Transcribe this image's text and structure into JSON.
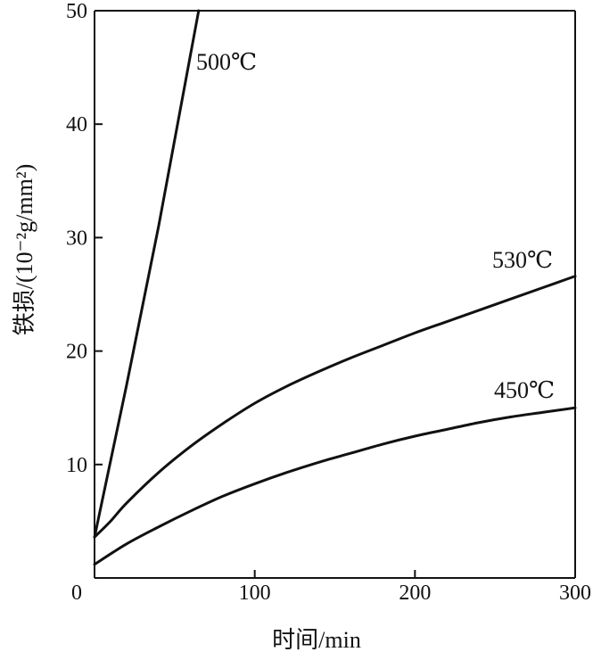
{
  "chart_data": {
    "type": "line",
    "title": "",
    "xlabel": "时间/min",
    "ylabel": "铁损/(10⁻²g/mm²)",
    "xlim": [
      0,
      300
    ],
    "ylim": [
      0,
      50
    ],
    "xticks": [
      0,
      100,
      200,
      300
    ],
    "yticks": [
      10,
      20,
      30,
      40,
      50
    ],
    "grid": false,
    "series": [
      {
        "name": "500℃",
        "x": [
          0,
          20,
          40,
          65
        ],
        "y": [
          3.6,
          17,
          31,
          50
        ]
      },
      {
        "name": "530℃",
        "x": [
          0,
          10,
          20,
          40,
          60,
          80,
          100,
          120,
          140,
          160,
          180,
          200,
          220,
          240,
          260,
          280,
          300
        ],
        "y": [
          3.6,
          5.0,
          6.6,
          9.3,
          11.6,
          13.6,
          15.4,
          16.9,
          18.2,
          19.4,
          20.5,
          21.6,
          22.6,
          23.6,
          24.6,
          25.6,
          26.6
        ]
      },
      {
        "name": "450℃",
        "x": [
          0,
          20,
          40,
          60,
          80,
          100,
          120,
          140,
          160,
          180,
          200,
          220,
          240,
          260,
          280,
          300
        ],
        "y": [
          1.2,
          3.0,
          4.5,
          5.9,
          7.2,
          8.3,
          9.3,
          10.2,
          11.0,
          11.8,
          12.5,
          13.1,
          13.7,
          14.2,
          14.6,
          15.0
        ]
      }
    ]
  }
}
